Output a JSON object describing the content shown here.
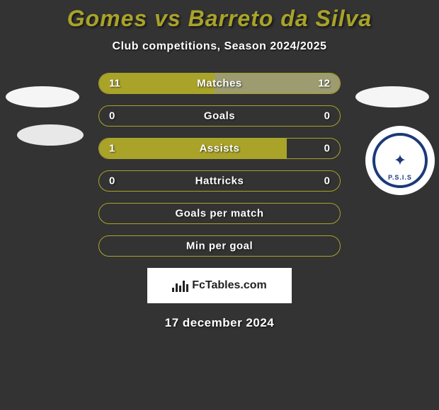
{
  "title": "Gomes vs Barreto da Silva",
  "subtitle": "Club competitions, Season 2024/2025",
  "date": "17 december 2024",
  "watermark": "FcTables.com",
  "club_right_text": "P.S.I.S",
  "colors": {
    "background": "#333333",
    "accent": "#a9a329",
    "border": "#b8b236",
    "right_fill": "#9c9c70",
    "text": "#ffffff"
  },
  "stats": [
    {
      "label": "Matches",
      "left_val": "11",
      "right_val": "12",
      "left_pct": 47.8,
      "right_pct": 52.2,
      "left_color": "#a9a329",
      "right_color": "#9c9c70",
      "border_color": "#a9a329",
      "show_vals": true
    },
    {
      "label": "Goals",
      "left_val": "0",
      "right_val": "0",
      "left_pct": 0,
      "right_pct": 0,
      "left_color": "#a9a329",
      "right_color": "#9c9c70",
      "border_color": "#a9a329",
      "show_vals": true
    },
    {
      "label": "Assists",
      "left_val": "1",
      "right_val": "0",
      "left_pct": 78,
      "right_pct": 0,
      "left_color": "#a9a329",
      "right_color": "#9c9c70",
      "border_color": "#a9a329",
      "show_vals": true
    },
    {
      "label": "Hattricks",
      "left_val": "0",
      "right_val": "0",
      "left_pct": 0,
      "right_pct": 0,
      "left_color": "#a9a329",
      "right_color": "#9c9c70",
      "border_color": "#a9a329",
      "show_vals": true
    },
    {
      "label": "Goals per match",
      "left_val": "",
      "right_val": "",
      "left_pct": 0,
      "right_pct": 0,
      "left_color": "#a9a329",
      "right_color": "#9c9c70",
      "border_color": "#a9a329",
      "show_vals": false
    },
    {
      "label": "Min per goal",
      "left_val": "",
      "right_val": "",
      "left_pct": 0,
      "right_pct": 0,
      "left_color": "#a9a329",
      "right_color": "#9c9c70",
      "border_color": "#a9a329",
      "show_vals": false
    }
  ]
}
